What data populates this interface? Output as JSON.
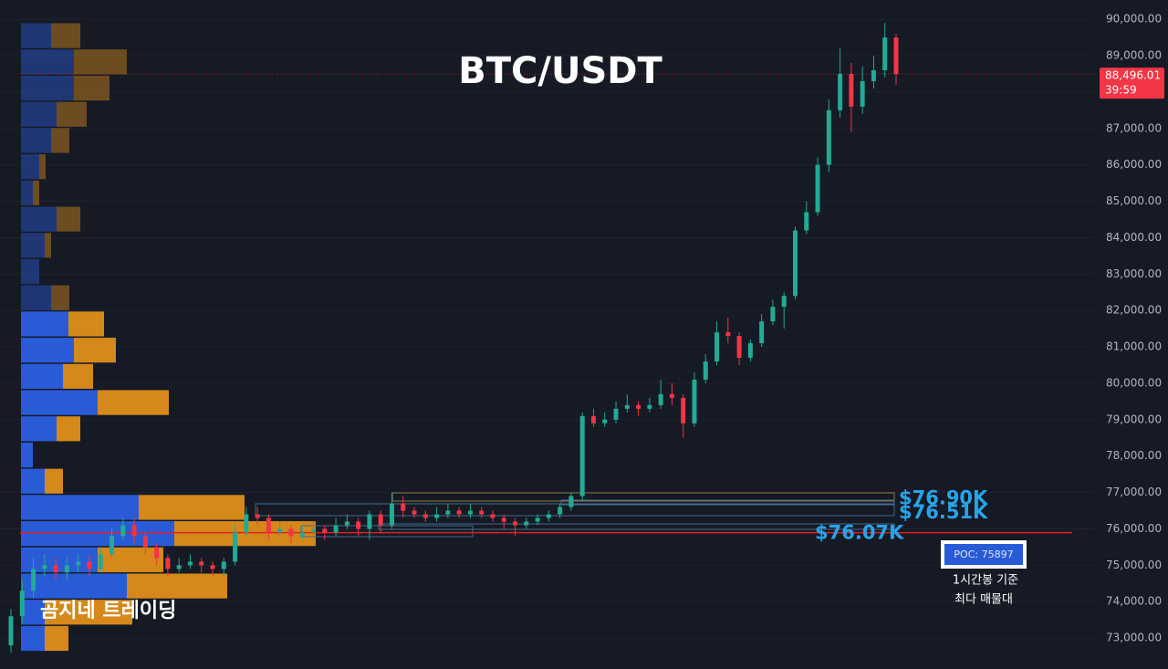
{
  "chart_data": {
    "type": "candlestick",
    "title": "BTC/USDT",
    "watermark": "곰지네 트레이딩",
    "up_color": "#22ab94",
    "down_color": "#f23645",
    "ylim": [
      72150,
      90530
    ],
    "yticks": [
      {
        "value": 73000,
        "label": "73,000.00"
      },
      {
        "value": 74000,
        "label": "74,000.00"
      },
      {
        "value": 75000,
        "label": "75,000.00"
      },
      {
        "value": 76000,
        "label": "76,000.00"
      },
      {
        "value": 77000,
        "label": "77,000.00"
      },
      {
        "value": 78000,
        "label": "78,000.00"
      },
      {
        "value": 79000,
        "label": "79,000.00"
      },
      {
        "value": 80000,
        "label": "80,000.00"
      },
      {
        "value": 81000,
        "label": "81,000.00"
      },
      {
        "value": 82000,
        "label": "82,000.00"
      },
      {
        "value": 83000,
        "label": "83,000.00"
      },
      {
        "value": 84000,
        "label": "84,000.00"
      },
      {
        "value": 85000,
        "label": "85,000.00"
      },
      {
        "value": 86000,
        "label": "86,000.00"
      },
      {
        "value": 87000,
        "label": "87,000.00"
      },
      {
        "value": 88000,
        "label": "88,000.00"
      },
      {
        "value": 89000,
        "label": "89,000.00"
      },
      {
        "value": 90000,
        "label": "90,000.00"
      }
    ],
    "grid": true,
    "open": [
      72800,
      73600,
      74300,
      74900,
      75000,
      74800,
      75000,
      75100,
      74900,
      75300,
      75800,
      76100,
      75800,
      75500,
      75200,
      74900,
      75000,
      75100,
      75000,
      74900,
      75100,
      75900,
      76400,
      76300,
      75900,
      76000,
      75800,
      75900,
      76000,
      75900,
      76100,
      76200,
      76000,
      76400,
      76100,
      76700,
      76500,
      76400,
      76300,
      76400,
      76500,
      76400,
      76500,
      76400,
      76300,
      76200,
      76100,
      76200,
      76300,
      76400,
      76600,
      76900,
      79100,
      78900,
      79000,
      79300,
      79400,
      79300,
      79400,
      79700,
      79600,
      78900,
      80100,
      80600,
      81400,
      81300,
      80700,
      81100,
      81700,
      82100,
      82400,
      84200,
      84700,
      86000,
      87500,
      88500,
      87600,
      88300,
      88600,
      89500
    ],
    "high": [
      73800,
      74600,
      75200,
      75300,
      75200,
      75200,
      75300,
      75300,
      75500,
      76000,
      76300,
      76300,
      75900,
      75600,
      75300,
      75200,
      75300,
      75200,
      75100,
      75200,
      76100,
      76600,
      76600,
      76400,
      76200,
      76100,
      76100,
      76200,
      76100,
      76300,
      76400,
      76300,
      76500,
      76500,
      77000,
      76900,
      76600,
      76500,
      76600,
      76700,
      76600,
      76700,
      76600,
      76500,
      76400,
      76300,
      76300,
      76400,
      76500,
      76700,
      77000,
      79200,
      79300,
      79200,
      79500,
      79700,
      79500,
      79600,
      80100,
      80000,
      79700,
      80300,
      80800,
      81700,
      81800,
      81400,
      81200,
      81900,
      82300,
      82500,
      84300,
      85000,
      86200,
      87800,
      89200,
      88800,
      88700,
      89000,
      89900,
      89600
    ],
    "low": [
      72600,
      73400,
      74100,
      74700,
      74600,
      74600,
      74800,
      74700,
      74800,
      75200,
      75700,
      75600,
      75300,
      75000,
      74700,
      74800,
      74900,
      74800,
      74700,
      74700,
      75000,
      75800,
      76100,
      75700,
      75800,
      75600,
      75700,
      75800,
      75700,
      75800,
      76000,
      75800,
      75700,
      75900,
      76000,
      76300,
      76300,
      76200,
      76200,
      76300,
      76300,
      76300,
      76300,
      76200,
      76000,
      75800,
      76000,
      76100,
      76200,
      76300,
      76500,
      76800,
      78800,
      78800,
      78900,
      79200,
      79100,
      79200,
      79300,
      79400,
      78500,
      78800,
      80000,
      80500,
      81100,
      80500,
      80600,
      81000,
      81600,
      81500,
      82300,
      84100,
      84600,
      85800,
      87300,
      86900,
      87400,
      88100,
      88400,
      88200
    ],
    "close": [
      73600,
      74300,
      74900,
      75000,
      74800,
      75000,
      75100,
      74900,
      75300,
      75800,
      76100,
      75800,
      75500,
      75200,
      74900,
      75000,
      75100,
      75000,
      74900,
      75100,
      75900,
      76400,
      76300,
      75900,
      76000,
      75800,
      75900,
      76000,
      75900,
      76100,
      76200,
      76000,
      76400,
      76100,
      76700,
      76500,
      76400,
      76300,
      76400,
      76500,
      76400,
      76500,
      76400,
      76300,
      76200,
      76100,
      76200,
      76300,
      76400,
      76600,
      76900,
      79100,
      78900,
      79000,
      79300,
      79400,
      79300,
      79400,
      79700,
      79600,
      78900,
      80100,
      80600,
      81400,
      81300,
      80700,
      81100,
      81700,
      82100,
      82400,
      84200,
      84700,
      86000,
      87500,
      88500,
      87600,
      88300,
      88600,
      89500,
      88496.01
    ],
    "last_price": {
      "value": 88496.01,
      "label": "88,496.01"
    },
    "countdown": "39:59",
    "profile": {
      "levels": [
        89550,
        88830,
        88110,
        87390,
        86670,
        85950,
        85230,
        84510,
        83790,
        83070,
        82350,
        81630,
        80910,
        80190,
        79470,
        78750,
        78030,
        77310,
        76590,
        75870,
        75150,
        74430,
        73710,
        72990
      ],
      "buy": [
        33,
        58,
        58,
        39,
        33,
        20,
        13,
        39,
        26,
        20,
        33,
        52,
        58,
        46,
        84,
        39,
        13,
        26,
        129,
        168,
        84,
        116,
        26,
        26
      ],
      "sell": [
        32,
        58,
        39,
        33,
        20,
        7,
        7,
        26,
        7,
        0,
        20,
        39,
        46,
        33,
        78,
        26,
        0,
        20,
        116,
        155,
        72,
        110,
        96,
        26
      ],
      "buy_color": "#2a5bd7",
      "sell_color": "#d4891a",
      "value_area": [
        72650,
        82000
      ]
    },
    "levels": [
      {
        "value": 76900,
        "label": "$76.90K"
      },
      {
        "value": 76510,
        "label": "$76.51K"
      },
      {
        "value": 76070,
        "label": "$76.07K"
      }
    ],
    "poc": {
      "value": 75897,
      "label": "POC: 75897"
    },
    "poc_note": [
      "1시간봉 기준",
      "최다 매물대"
    ]
  }
}
